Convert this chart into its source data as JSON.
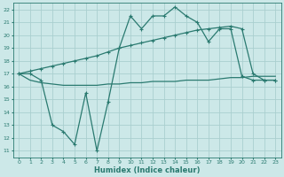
{
  "xlabel": "Humidex (Indice chaleur)",
  "x_values": [
    0,
    1,
    2,
    3,
    4,
    5,
    6,
    7,
    8,
    9,
    10,
    11,
    12,
    13,
    14,
    15,
    16,
    17,
    18,
    19,
    20,
    21,
    22,
    23
  ],
  "line_zigzag": [
    17.0,
    17.0,
    16.5,
    13.0,
    12.5,
    11.5,
    15.5,
    11.0,
    14.8,
    19.0,
    21.5,
    20.5,
    21.5,
    21.5,
    22.2,
    21.5,
    21.0,
    19.5,
    20.5,
    20.5,
    16.8,
    16.5,
    16.5,
    16.5
  ],
  "line_diagonal": [
    17.0,
    17.2,
    17.4,
    17.6,
    17.8,
    18.0,
    18.2,
    18.4,
    18.7,
    19.0,
    19.2,
    19.4,
    19.6,
    19.8,
    20.0,
    20.2,
    20.4,
    20.5,
    20.6,
    20.7,
    20.5,
    17.0,
    16.5,
    16.5
  ],
  "line_flat": [
    17.0,
    16.5,
    16.3,
    16.2,
    16.1,
    16.1,
    16.1,
    16.1,
    16.2,
    16.2,
    16.3,
    16.3,
    16.4,
    16.4,
    16.4,
    16.5,
    16.5,
    16.5,
    16.6,
    16.7,
    16.7,
    16.8,
    16.8,
    16.8
  ],
  "color": "#2a7a70",
  "bg_color": "#cce8e8",
  "grid_color": "#aacfcf",
  "yticks": [
    11,
    12,
    13,
    14,
    15,
    16,
    17,
    18,
    19,
    20,
    21,
    22
  ],
  "xticks": [
    0,
    1,
    2,
    3,
    4,
    5,
    6,
    7,
    8,
    9,
    10,
    11,
    12,
    13,
    14,
    15,
    16,
    17,
    18,
    19,
    20,
    21,
    22,
    23
  ]
}
